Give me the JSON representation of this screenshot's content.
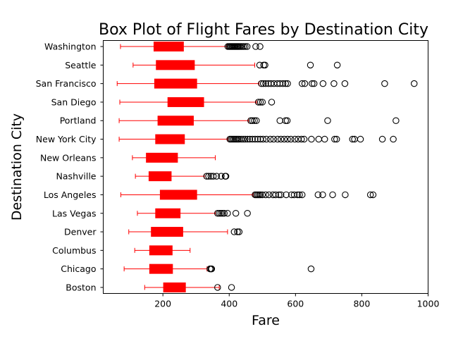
{
  "chart_data": {
    "type": "boxplot",
    "orientation": "horizontal",
    "title": "Box Plot of Flight Fares by Destination City",
    "xlabel": "Fare",
    "ylabel": "Destination City",
    "xlim": [
      20,
      1000
    ],
    "xticks": [
      200,
      400,
      600,
      800,
      1000
    ],
    "grid": false,
    "legend": "none",
    "box_color": "#ff0000",
    "whisker_color": "#ff0000",
    "flier_color": "#000000",
    "categories": [
      "Boston",
      "Chicago",
      "Columbus",
      "Denver",
      "Las Vegas",
      "Los Angeles",
      "Nashville",
      "New Orleans",
      "New York City",
      "Portland",
      "San Diego",
      "San Francisco",
      "Seattle",
      "Washington"
    ],
    "boxes": [
      {
        "city": "Boston",
        "whislo": 145,
        "q1": 202,
        "med": 236,
        "q3": 268,
        "whishi": 370,
        "fliers": [
          365,
          407
        ]
      },
      {
        "city": "Chicago",
        "whislo": 83,
        "q1": 160,
        "med": 196,
        "q3": 229,
        "whishi": 333,
        "fliers": [
          342,
          345,
          347,
          647
        ]
      },
      {
        "city": "Columbus",
        "whislo": 115,
        "q1": 160,
        "med": 195,
        "q3": 228,
        "whishi": 282,
        "fliers": []
      },
      {
        "city": "Denver",
        "whislo": 97,
        "q1": 165,
        "med": 212,
        "q3": 260,
        "whishi": 395,
        "fliers": [
          415,
          425,
          430
        ]
      },
      {
        "city": "Las Vegas",
        "whislo": 123,
        "q1": 178,
        "med": 215,
        "q3": 252,
        "whishi": 358,
        "fliers": [
          365,
          370,
          375,
          380,
          385,
          395,
          420,
          455
        ]
      },
      {
        "city": "Los Angeles",
        "whislo": 73,
        "q1": 192,
        "med": 248,
        "q3": 302,
        "whishi": 472,
        "fliers": [
          478,
          482,
          486,
          490,
          494,
          500,
          510,
          520,
          532,
          540,
          550,
          556,
          572,
          588,
          596,
          606,
          612,
          620,
          668,
          682,
          712,
          750,
          826,
          834
        ]
      },
      {
        "city": "Nashville",
        "whislo": 117,
        "q1": 158,
        "med": 191,
        "q3": 225,
        "whishi": 325,
        "fliers": [
          332,
          338,
          345,
          352,
          362,
          376,
          388,
          390
        ]
      },
      {
        "city": "New Orleans",
        "whislo": 108,
        "q1": 150,
        "med": 198,
        "q3": 244,
        "whishi": 358,
        "fliers": []
      },
      {
        "city": "New York City",
        "whislo": 68,
        "q1": 178,
        "med": 224,
        "q3": 265,
        "whishi": 395,
        "fliers": [
          402,
          406,
          410,
          414,
          418,
          422,
          426,
          430,
          436,
          442,
          448,
          455,
          462,
          470,
          478,
          486,
          494,
          502,
          512,
          524,
          534,
          546,
          556,
          566,
          576,
          586,
          598,
          608,
          618,
          626,
          648,
          670,
          688,
          718,
          724,
          772,
          778,
          796,
          862,
          895
        ]
      },
      {
        "city": "Portland",
        "whislo": 68,
        "q1": 185,
        "med": 238,
        "q3": 292,
        "whishi": 458,
        "fliers": [
          465,
          470,
          476,
          482,
          553,
          570,
          575,
          697,
          903
        ]
      },
      {
        "city": "San Diego",
        "whislo": 70,
        "q1": 215,
        "med": 270,
        "q3": 323,
        "whishi": 482,
        "fliers": [
          488,
          494,
          500,
          528
        ]
      },
      {
        "city": "San Francisco",
        "whislo": 62,
        "q1": 175,
        "med": 238,
        "q3": 302,
        "whishi": 490,
        "fliers": [
          497,
          503,
          510,
          518,
          526,
          535,
          545,
          553,
          562,
          570,
          576,
          620,
          628,
          650,
          656,
          683,
          716,
          749,
          869,
          958
        ]
      },
      {
        "city": "Seattle",
        "whislo": 110,
        "q1": 180,
        "med": 238,
        "q3": 295,
        "whishi": 477,
        "fliers": [
          492,
          504,
          508,
          645,
          726
        ]
      },
      {
        "city": "Washington",
        "whislo": 72,
        "q1": 173,
        "med": 217,
        "q3": 262,
        "whishi": 392,
        "fliers": [
          396,
          400,
          403,
          406,
          409,
          412,
          415,
          418,
          421,
          424,
          427,
          430,
          434,
          438,
          443,
          448,
          454,
          480,
          493
        ]
      }
    ]
  }
}
